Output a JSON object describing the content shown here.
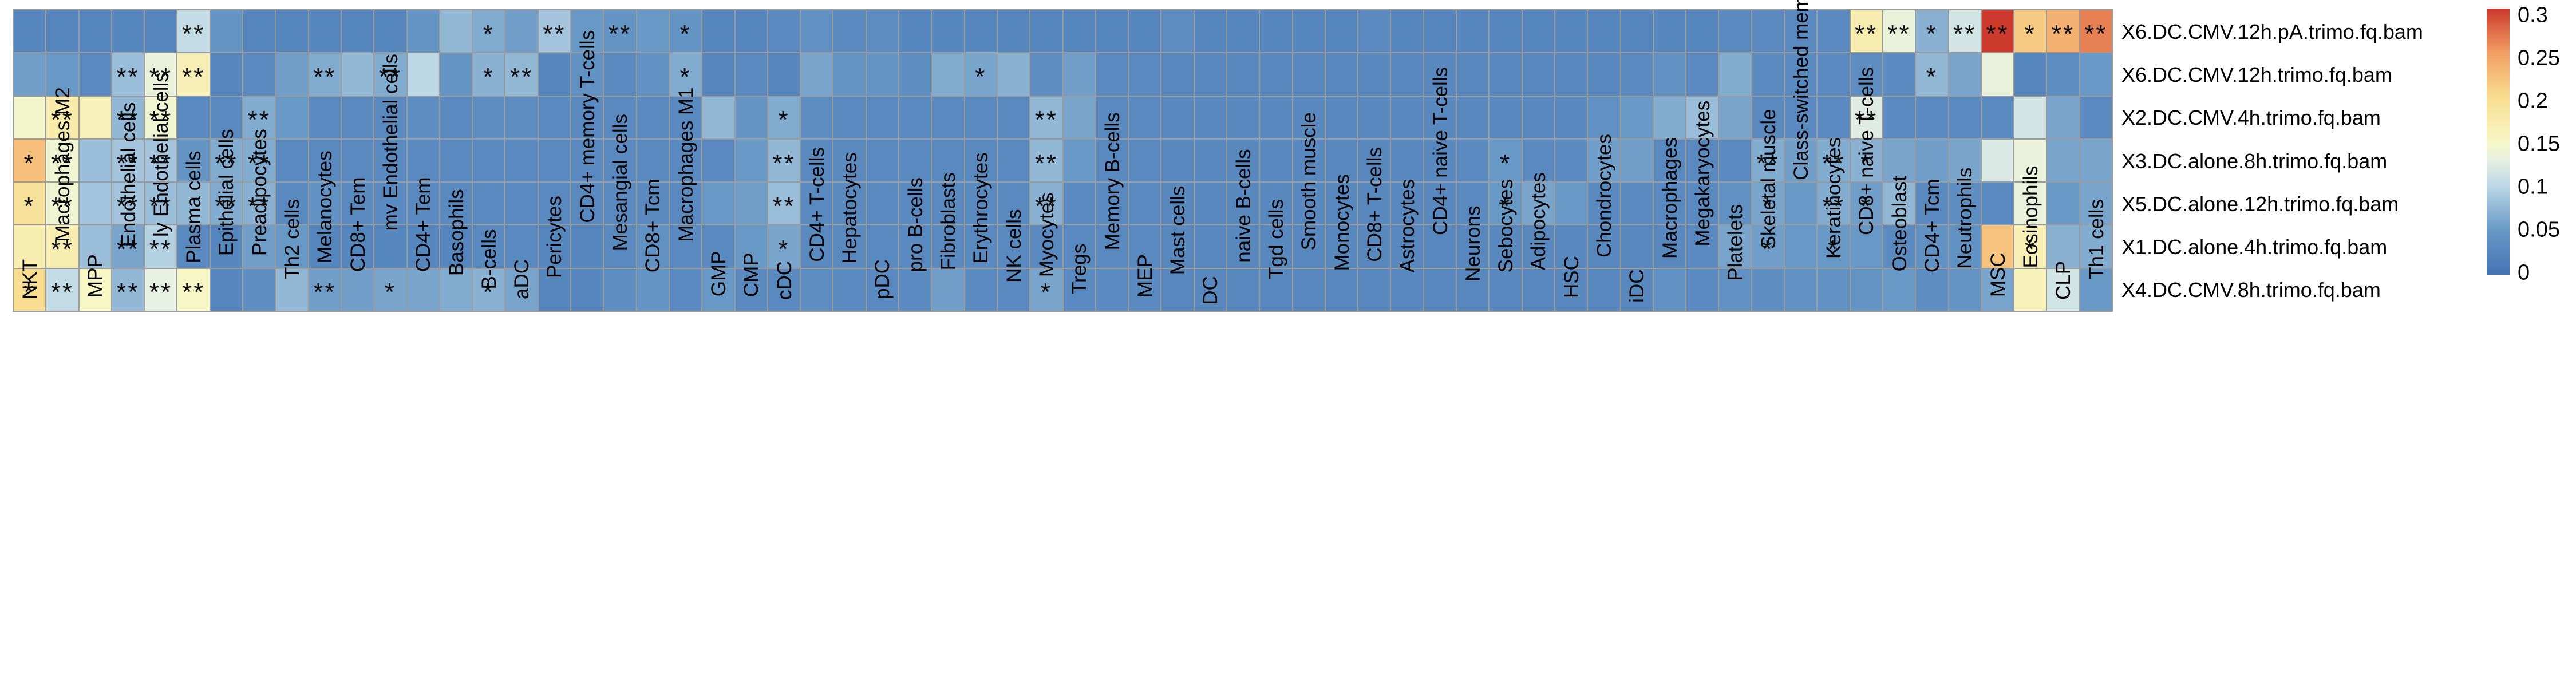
{
  "chart_data": {
    "type": "heatmap",
    "title": "",
    "xlabel": "",
    "ylabel": "",
    "legend_position": "right",
    "grid": true,
    "columns": [
      "NKT",
      "Macrophages M2",
      "MPP",
      "Endothelial cells",
      "ly Endothelial cells",
      "Plasma cells",
      "Epithelial cells",
      "Preadipocytes",
      "Th2 cells",
      "Melanocytes",
      "CD8+ Tem",
      "mv Endothelial cells",
      "CD4+ Tem",
      "Basophils",
      "B-cells",
      "aDC",
      "Pericytes",
      "CD4+ memory T-cells",
      "Mesangial cells",
      "CD8+ Tcm",
      "Macrophages M1",
      "GMP",
      "CMP",
      "cDC",
      "CD4+ T-cells",
      "Hepatocytes",
      "pDC",
      "pro B-cells",
      "Fibroblasts",
      "Erythrocytes",
      "NK cells",
      "Myocytes",
      "Tregs",
      "Memory B-cells",
      "MEP",
      "Mast cells",
      "DC",
      "naive B-cells",
      "Tgd cells",
      "Smooth muscle",
      "Monocytes",
      "CD8+ T-cells",
      "Astrocytes",
      "CD4+ naive T-cells",
      "Neurons",
      "Sebocytes",
      "Adipocytes",
      "HSC",
      "Chondrocytes",
      "iDC",
      "Macrophages",
      "Megakaryocytes",
      "Platelets",
      "Skeletal muscle",
      "Class-switched memory B-cells",
      "Keratinocytes",
      "CD8+ naive T-cells",
      "Osteoblast",
      "CD4+ Tcm",
      "Neutrophils",
      "MSC",
      "Eosinophils",
      "CLP",
      "Th1 cells"
    ],
    "rows": [
      "X6.DC.CMV.12h.pA.trimo.fq.bam",
      "X6.DC.CMV.12h.trimo.fq.bam",
      "X2.DC.CMV.4h.trimo.fq.bam",
      "X3.DC.alone.8h.trimo.fq.bam",
      "X5.DC.alone.12h.trimo.fq.bam",
      "X1.DC.alone.4h.trimo.fq.bam",
      "X4.DC.CMV.8h.trimo.fq.bam"
    ],
    "values": [
      [
        0.025,
        0.025,
        0.025,
        0.025,
        0.025,
        0.105,
        0.045,
        0.025,
        0.025,
        0.025,
        0.025,
        0.025,
        0.045,
        0.075,
        0.065,
        0.055,
        0.085,
        0.05,
        0.045,
        0.05,
        0.045,
        0.025,
        0.025,
        0.03,
        0.04,
        0.03,
        0.035,
        0.025,
        0.025,
        0.025,
        0.025,
        0.025,
        0.025,
        0.025,
        0.025,
        0.035,
        0.025,
        0.025,
        0.025,
        0.025,
        0.025,
        0.03,
        0.025,
        0.025,
        0.025,
        0.025,
        0.025,
        0.025,
        0.025,
        0.025,
        0.025,
        0.025,
        0.03,
        0.03,
        0.03,
        0.03,
        0.17,
        0.135,
        0.07,
        0.115,
        0.3,
        0.215,
        0.235,
        0.265
      ],
      [
        0.055,
        0.05,
        0.03,
        0.08,
        0.135,
        0.165,
        0.025,
        0.03,
        0.055,
        0.065,
        0.075,
        0.065,
        0.1,
        0.045,
        0.07,
        0.075,
        0.025,
        0.04,
        0.03,
        0.04,
        0.065,
        0.025,
        0.03,
        0.025,
        0.06,
        0.045,
        0.045,
        0.035,
        0.065,
        0.06,
        0.07,
        0.035,
        0.055,
        0.03,
        0.03,
        0.028,
        0.028,
        0.028,
        0.028,
        0.028,
        0.028,
        0.028,
        0.028,
        0.028,
        0.028,
        0.028,
        0.028,
        0.028,
        0.028,
        0.03,
        0.04,
        0.03,
        0.065,
        0.03,
        0.03,
        0.03,
        0.035,
        0.03,
        0.075,
        0.06,
        0.135,
        0.025,
        0.035,
        0.05
      ],
      [
        0.145,
        0.175,
        0.16,
        0.075,
        0.14,
        0.03,
        0.03,
        0.065,
        0.05,
        0.03,
        0.03,
        0.03,
        0.035,
        0.03,
        0.035,
        0.035,
        0.03,
        0.03,
        0.03,
        0.03,
        0.03,
        0.075,
        0.045,
        0.065,
        0.035,
        0.03,
        0.03,
        0.03,
        0.03,
        0.03,
        0.03,
        0.075,
        0.06,
        0.03,
        0.03,
        0.028,
        0.028,
        0.028,
        0.028,
        0.028,
        0.028,
        0.028,
        0.028,
        0.028,
        0.028,
        0.028,
        0.028,
        0.028,
        0.04,
        0.05,
        0.065,
        0.08,
        0.06,
        0.03,
        0.03,
        0.03,
        0.125,
        0.03,
        0.03,
        0.03,
        0.03,
        0.115,
        0.06,
        0.03
      ],
      [
        0.225,
        0.14,
        0.08,
        0.085,
        0.085,
        0.045,
        0.065,
        0.065,
        0.03,
        0.03,
        0.03,
        0.03,
        0.03,
        0.03,
        0.03,
        0.03,
        0.03,
        0.03,
        0.03,
        0.03,
        0.03,
        0.03,
        0.05,
        0.075,
        0.03,
        0.03,
        0.03,
        0.03,
        0.03,
        0.03,
        0.03,
        0.075,
        0.05,
        0.03,
        0.03,
        0.028,
        0.028,
        0.028,
        0.028,
        0.028,
        0.028,
        0.028,
        0.028,
        0.028,
        0.03,
        0.05,
        0.03,
        0.03,
        0.055,
        0.055,
        0.03,
        0.03,
        0.03,
        0.065,
        0.055,
        0.065,
        0.07,
        0.06,
        0.055,
        0.06,
        0.12,
        0.135,
        0.06,
        0.06
      ],
      [
        0.19,
        0.14,
        0.085,
        0.085,
        0.08,
        0.075,
        0.065,
        0.07,
        0.03,
        0.04,
        0.03,
        0.03,
        0.03,
        0.03,
        0.03,
        0.03,
        0.03,
        0.03,
        0.03,
        0.03,
        0.03,
        0.05,
        0.055,
        0.08,
        0.03,
        0.03,
        0.03,
        0.03,
        0.03,
        0.03,
        0.03,
        0.07,
        0.03,
        0.03,
        0.03,
        0.028,
        0.028,
        0.028,
        0.028,
        0.028,
        0.028,
        0.028,
        0.028,
        0.028,
        0.03,
        0.05,
        0.06,
        0.05,
        0.03,
        0.03,
        0.03,
        0.03,
        0.04,
        0.06,
        0.05,
        0.065,
        0.055,
        0.075,
        0.03,
        0.035,
        0.03,
        0.135,
        0.05,
        0.06
      ],
      [
        0.17,
        0.17,
        0.08,
        0.06,
        0.095,
        0.03,
        0.025,
        0.055,
        0.05,
        0.025,
        0.025,
        0.025,
        0.025,
        0.025,
        0.03,
        0.03,
        0.025,
        0.025,
        0.03,
        0.04,
        0.03,
        0.03,
        0.05,
        0.06,
        0.03,
        0.03,
        0.03,
        0.03,
        0.03,
        0.03,
        0.03,
        0.03,
        0.03,
        0.03,
        0.03,
        0.028,
        0.028,
        0.028,
        0.028,
        0.028,
        0.028,
        0.028,
        0.028,
        0.028,
        0.028,
        0.028,
        0.028,
        0.028,
        0.028,
        0.028,
        0.028,
        0.03,
        0.06,
        0.055,
        0.05,
        0.05,
        0.05,
        0.03,
        0.04,
        0.04,
        0.22,
        0.165,
        0.07,
        0.065
      ],
      [
        0.2,
        0.105,
        0.15,
        0.075,
        0.13,
        0.15,
        0.025,
        0.035,
        0.075,
        0.055,
        0.055,
        0.06,
        0.06,
        0.065,
        0.07,
        0.06,
        0.025,
        0.025,
        0.035,
        0.045,
        0.03,
        0.05,
        0.03,
        0.03,
        0.035,
        0.03,
        0.03,
        0.03,
        0.055,
        0.03,
        0.03,
        0.06,
        0.03,
        0.03,
        0.03,
        0.028,
        0.028,
        0.028,
        0.028,
        0.028,
        0.028,
        0.028,
        0.028,
        0.028,
        0.028,
        0.028,
        0.028,
        0.028,
        0.028,
        0.028,
        0.04,
        0.03,
        0.04,
        0.035,
        0.04,
        0.04,
        0.045,
        0.05,
        0.035,
        0.045,
        0.06,
        0.16,
        0.115,
        0.05
      ]
    ],
    "stars": [
      [
        0,
        5,
        "**"
      ],
      [
        0,
        14,
        "*"
      ],
      [
        0,
        16,
        "**"
      ],
      [
        0,
        18,
        "**"
      ],
      [
        0,
        20,
        "*"
      ],
      [
        0,
        56,
        "**"
      ],
      [
        0,
        57,
        "**"
      ],
      [
        0,
        58,
        "*"
      ],
      [
        0,
        59,
        "**"
      ],
      [
        0,
        60,
        "**"
      ],
      [
        0,
        61,
        "*"
      ],
      [
        0,
        62,
        "**"
      ],
      [
        0,
        63,
        "**"
      ],
      [
        1,
        3,
        "**"
      ],
      [
        1,
        4,
        "**"
      ],
      [
        1,
        5,
        "**"
      ],
      [
        1,
        9,
        "**"
      ],
      [
        1,
        11,
        "**"
      ],
      [
        1,
        14,
        "*"
      ],
      [
        1,
        15,
        "**"
      ],
      [
        1,
        20,
        "*"
      ],
      [
        1,
        29,
        "*"
      ],
      [
        1,
        58,
        "*"
      ],
      [
        2,
        1,
        "**"
      ],
      [
        2,
        3,
        "**"
      ],
      [
        2,
        4,
        "**"
      ],
      [
        2,
        7,
        "**"
      ],
      [
        2,
        23,
        "*"
      ],
      [
        2,
        31,
        "**"
      ],
      [
        2,
        56,
        "**"
      ],
      [
        3,
        0,
        "*"
      ],
      [
        3,
        1,
        "**"
      ],
      [
        3,
        3,
        "**"
      ],
      [
        3,
        4,
        "**"
      ],
      [
        3,
        6,
        "**"
      ],
      [
        3,
        7,
        "**"
      ],
      [
        3,
        23,
        "**"
      ],
      [
        3,
        31,
        "**"
      ],
      [
        3,
        45,
        "*"
      ],
      [
        3,
        53,
        "**"
      ],
      [
        3,
        55,
        "**"
      ],
      [
        3,
        56,
        "*"
      ],
      [
        4,
        0,
        "*"
      ],
      [
        4,
        1,
        "**"
      ],
      [
        4,
        3,
        "**"
      ],
      [
        4,
        4,
        "**"
      ],
      [
        4,
        6,
        "**"
      ],
      [
        4,
        7,
        "**"
      ],
      [
        4,
        23,
        "**"
      ],
      [
        4,
        31,
        "**"
      ],
      [
        4,
        45,
        "*"
      ],
      [
        4,
        53,
        "*"
      ],
      [
        4,
        55,
        "**"
      ],
      [
        4,
        56,
        "*"
      ],
      [
        5,
        1,
        "**"
      ],
      [
        5,
        3,
        "**"
      ],
      [
        5,
        4,
        "**"
      ],
      [
        5,
        23,
        "*"
      ],
      [
        5,
        53,
        "*"
      ],
      [
        5,
        55,
        "*"
      ],
      [
        5,
        61,
        "*"
      ],
      [
        6,
        0,
        "*"
      ],
      [
        6,
        1,
        "**"
      ],
      [
        6,
        3,
        "**"
      ],
      [
        6,
        4,
        "**"
      ],
      [
        6,
        5,
        "**"
      ],
      [
        6,
        9,
        "**"
      ],
      [
        6,
        11,
        "*"
      ],
      [
        6,
        14,
        "*"
      ],
      [
        6,
        31,
        "*"
      ]
    ],
    "colorbar": {
      "min": 0,
      "max": 0.3,
      "ticks": [
        "0.3",
        "0.25",
        "0.2",
        "0.15",
        "0.1",
        "0.05",
        "0"
      ],
      "stops": [
        [
          0.0,
          "#4473b6"
        ],
        [
          0.05,
          "#6898c5"
        ],
        [
          0.1,
          "#bcd7e6"
        ],
        [
          0.13,
          "#e7f0e2"
        ],
        [
          0.15,
          "#f7f7c5"
        ],
        [
          0.2,
          "#f8dd90"
        ],
        [
          0.25,
          "#f29e64"
        ],
        [
          0.3,
          "#cc392d"
        ]
      ]
    },
    "cell_w": 55.3,
    "cell_h": 73.3,
    "grid_color": "#9b9b9b"
  }
}
